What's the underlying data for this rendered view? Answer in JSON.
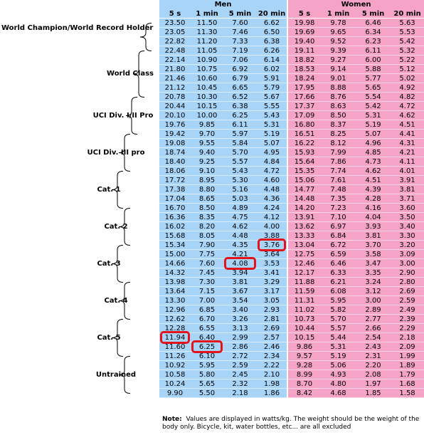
{
  "table": {
    "headers": {
      "men": "Men",
      "women": "Women",
      "durations": [
        "5 s",
        "1 min",
        "5 min",
        "20 min"
      ]
    },
    "rows": [
      [
        23.5,
        11.5,
        7.6,
        6.62,
        19.98,
        9.78,
        6.46,
        5.63
      ],
      [
        23.05,
        11.3,
        7.46,
        6.5,
        19.69,
        9.65,
        6.34,
        5.53
      ],
      [
        22.82,
        11.2,
        7.33,
        6.38,
        19.4,
        9.52,
        6.23,
        5.42
      ],
      [
        22.48,
        11.05,
        7.19,
        6.26,
        19.11,
        9.39,
        6.11,
        5.32
      ],
      [
        22.14,
        10.9,
        7.06,
        6.14,
        18.82,
        9.27,
        6.0,
        5.22
      ],
      [
        21.8,
        10.75,
        6.92,
        6.02,
        18.53,
        9.14,
        5.88,
        5.12
      ],
      [
        21.46,
        10.6,
        6.79,
        5.91,
        18.24,
        9.01,
        5.77,
        5.02
      ],
      [
        21.12,
        10.45,
        6.65,
        5.79,
        17.95,
        8.88,
        5.65,
        4.92
      ],
      [
        20.78,
        10.3,
        6.52,
        5.67,
        17.66,
        8.76,
        5.54,
        4.82
      ],
      [
        20.44,
        10.15,
        6.38,
        5.55,
        17.37,
        8.63,
        5.42,
        4.72
      ],
      [
        20.1,
        10.0,
        6.25,
        5.43,
        17.09,
        8.5,
        5.31,
        4.62
      ],
      [
        19.76,
        9.85,
        6.11,
        5.31,
        16.8,
        8.37,
        5.19,
        4.51
      ],
      [
        19.42,
        9.7,
        5.97,
        5.19,
        16.51,
        8.25,
        5.07,
        4.41
      ],
      [
        19.08,
        9.55,
        5.84,
        5.07,
        16.22,
        8.12,
        4.96,
        4.31
      ],
      [
        18.74,
        9.4,
        5.7,
        4.95,
        15.93,
        7.99,
        4.85,
        4.21
      ],
      [
        18.4,
        9.25,
        5.57,
        4.84,
        15.64,
        7.86,
        4.73,
        4.11
      ],
      [
        18.06,
        9.1,
        5.43,
        4.72,
        15.35,
        7.74,
        4.62,
        4.01
      ],
      [
        17.72,
        8.95,
        5.3,
        4.6,
        15.06,
        7.61,
        4.51,
        3.91
      ],
      [
        17.38,
        8.8,
        5.16,
        4.48,
        14.77,
        7.48,
        4.39,
        3.81
      ],
      [
        17.04,
        8.65,
        5.03,
        4.36,
        14.48,
        7.35,
        4.28,
        3.71
      ],
      [
        16.7,
        8.5,
        4.89,
        4.24,
        14.2,
        7.23,
        4.16,
        3.6
      ],
      [
        16.36,
        8.35,
        4.75,
        4.12,
        13.91,
        7.1,
        4.04,
        3.5
      ],
      [
        16.02,
        8.2,
        4.62,
        4.0,
        13.62,
        6.97,
        3.93,
        3.4
      ],
      [
        15.68,
        8.05,
        4.48,
        3.88,
        13.33,
        6.84,
        3.81,
        3.3
      ],
      [
        15.34,
        7.9,
        4.35,
        3.76,
        13.04,
        6.72,
        3.7,
        3.2
      ],
      [
        15.0,
        7.75,
        4.21,
        3.64,
        12.75,
        6.59,
        3.58,
        3.09
      ],
      [
        14.66,
        7.6,
        4.08,
        3.53,
        12.46,
        6.46,
        3.47,
        3.0
      ],
      [
        14.32,
        7.45,
        3.94,
        3.41,
        12.17,
        6.33,
        3.35,
        2.9
      ],
      [
        13.98,
        7.3,
        3.81,
        3.29,
        11.88,
        6.21,
        3.24,
        2.8
      ],
      [
        13.64,
        7.15,
        3.67,
        3.17,
        11.59,
        6.08,
        3.12,
        2.69
      ],
      [
        13.3,
        7.0,
        3.54,
        3.05,
        11.31,
        5.95,
        3.0,
        2.59
      ],
      [
        12.96,
        6.85,
        3.4,
        2.93,
        11.02,
        5.82,
        2.89,
        2.49
      ],
      [
        12.62,
        6.7,
        3.26,
        2.81,
        10.73,
        5.7,
        2.77,
        2.39
      ],
      [
        12.28,
        6.55,
        3.13,
        2.69,
        10.44,
        5.57,
        2.66,
        2.29
      ],
      [
        11.94,
        6.4,
        2.99,
        2.57,
        10.15,
        5.44,
        2.54,
        2.18
      ],
      [
        11.6,
        6.25,
        2.86,
        2.46,
        9.86,
        5.31,
        2.43,
        2.09
      ],
      [
        11.26,
        6.1,
        2.72,
        2.34,
        9.57,
        5.19,
        2.31,
        1.99
      ],
      [
        10.92,
        5.95,
        2.59,
        2.22,
        9.28,
        5.06,
        2.2,
        1.89
      ],
      [
        10.58,
        5.8,
        2.45,
        2.1,
        8.99,
        4.93,
        2.08,
        1.79
      ],
      [
        10.24,
        5.65,
        2.32,
        1.98,
        8.7,
        4.8,
        1.97,
        1.68
      ],
      [
        9.9,
        5.5,
        2.18,
        1.86,
        8.42,
        4.68,
        1.85,
        1.58
      ]
    ],
    "highlighted_cells": [
      {
        "row": 24,
        "col": 3
      },
      {
        "row": 26,
        "col": 2
      },
      {
        "row": 34,
        "col": 0
      },
      {
        "row": 35,
        "col": 1
      }
    ],
    "men_color": "#a8d4f8",
    "women_color": "#f5a3c7",
    "highlight_color": "#e2131a"
  },
  "categories": [
    {
      "label": "World Champion/World Record Holder",
      "first_row": 0,
      "last_row": 3
    },
    {
      "label": "World Class",
      "first_row": 3,
      "last_row": 8
    },
    {
      "label": "UCI Div. I/II Pro",
      "first_row": 8,
      "last_row": 12
    },
    {
      "label": "UCI Div. III pro",
      "first_row": 12,
      "last_row": 16
    },
    {
      "label": "Cat. 1",
      "first_row": 16,
      "last_row": 20
    },
    {
      "label": "Cat. 2",
      "first_row": 20,
      "last_row": 24
    },
    {
      "label": "Cat. 3",
      "first_row": 24,
      "last_row": 28
    },
    {
      "label": "Cat. 4",
      "first_row": 28,
      "last_row": 32
    },
    {
      "label": "Cat. 5",
      "first_row": 32,
      "last_row": 36
    },
    {
      "label": "Untrained",
      "first_row": 36,
      "last_row": 40
    }
  ],
  "note": {
    "prefix": "Note:",
    "text": "Values are displayed in watts/kg.  The weight should be the weight of the body only.  Bicycle, kit, water bottles, etc... are all excluded"
  }
}
